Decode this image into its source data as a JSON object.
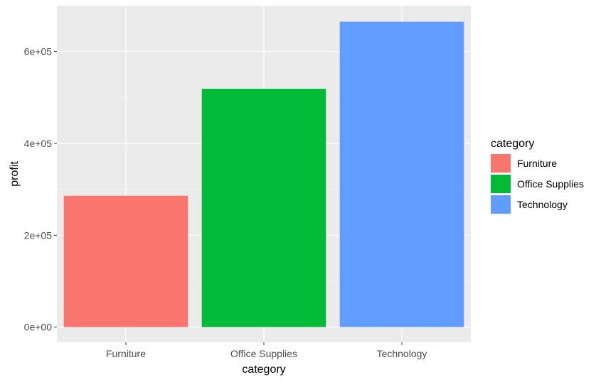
{
  "chart_data": {
    "type": "bar",
    "categories": [
      "Furniture",
      "Office Supplies",
      "Technology"
    ],
    "values": [
      286000,
      519000,
      665000
    ],
    "colors": [
      "#F8766D",
      "#00BA38",
      "#619CFF"
    ],
    "xlabel": "category",
    "ylabel": "profit",
    "ylim": [
      -33000,
      700000
    ],
    "yticks": [
      0,
      200000,
      400000,
      600000
    ],
    "ytick_labels": [
      "0e+00",
      "2e+05",
      "4e+05",
      "6e+05"
    ],
    "grid": true,
    "legend": {
      "title": "category",
      "position": "right",
      "entries": [
        "Furniture",
        "Office Supplies",
        "Technology"
      ]
    }
  }
}
